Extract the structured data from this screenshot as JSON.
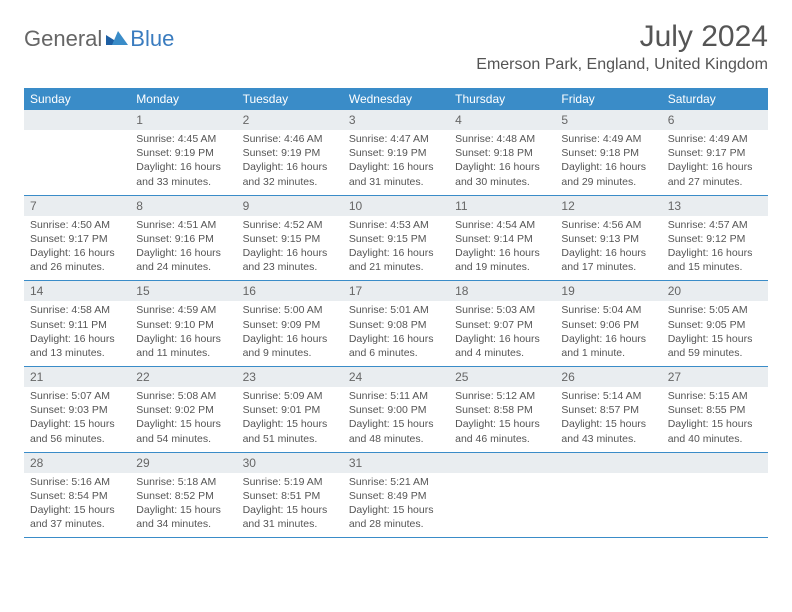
{
  "brand": {
    "part1": "General",
    "part2": "Blue"
  },
  "title": "July 2024",
  "location": "Emerson Park, England, United Kingdom",
  "colors": {
    "header_bg": "#3a8cc8",
    "header_text": "#ffffff",
    "daynum_bg": "#e9edf0",
    "text": "#555555",
    "rule": "#3a8cc8"
  },
  "days_of_week": [
    "Sunday",
    "Monday",
    "Tuesday",
    "Wednesday",
    "Thursday",
    "Friday",
    "Saturday"
  ],
  "weeks": [
    [
      {
        "blank": true
      },
      {
        "num": "1",
        "sunrise": "Sunrise: 4:45 AM",
        "sunset": "Sunset: 9:19 PM",
        "daylight1": "Daylight: 16 hours",
        "daylight2": "and 33 minutes."
      },
      {
        "num": "2",
        "sunrise": "Sunrise: 4:46 AM",
        "sunset": "Sunset: 9:19 PM",
        "daylight1": "Daylight: 16 hours",
        "daylight2": "and 32 minutes."
      },
      {
        "num": "3",
        "sunrise": "Sunrise: 4:47 AM",
        "sunset": "Sunset: 9:19 PM",
        "daylight1": "Daylight: 16 hours",
        "daylight2": "and 31 minutes."
      },
      {
        "num": "4",
        "sunrise": "Sunrise: 4:48 AM",
        "sunset": "Sunset: 9:18 PM",
        "daylight1": "Daylight: 16 hours",
        "daylight2": "and 30 minutes."
      },
      {
        "num": "5",
        "sunrise": "Sunrise: 4:49 AM",
        "sunset": "Sunset: 9:18 PM",
        "daylight1": "Daylight: 16 hours",
        "daylight2": "and 29 minutes."
      },
      {
        "num": "6",
        "sunrise": "Sunrise: 4:49 AM",
        "sunset": "Sunset: 9:17 PM",
        "daylight1": "Daylight: 16 hours",
        "daylight2": "and 27 minutes."
      }
    ],
    [
      {
        "num": "7",
        "sunrise": "Sunrise: 4:50 AM",
        "sunset": "Sunset: 9:17 PM",
        "daylight1": "Daylight: 16 hours",
        "daylight2": "and 26 minutes."
      },
      {
        "num": "8",
        "sunrise": "Sunrise: 4:51 AM",
        "sunset": "Sunset: 9:16 PM",
        "daylight1": "Daylight: 16 hours",
        "daylight2": "and 24 minutes."
      },
      {
        "num": "9",
        "sunrise": "Sunrise: 4:52 AM",
        "sunset": "Sunset: 9:15 PM",
        "daylight1": "Daylight: 16 hours",
        "daylight2": "and 23 minutes."
      },
      {
        "num": "10",
        "sunrise": "Sunrise: 4:53 AM",
        "sunset": "Sunset: 9:15 PM",
        "daylight1": "Daylight: 16 hours",
        "daylight2": "and 21 minutes."
      },
      {
        "num": "11",
        "sunrise": "Sunrise: 4:54 AM",
        "sunset": "Sunset: 9:14 PM",
        "daylight1": "Daylight: 16 hours",
        "daylight2": "and 19 minutes."
      },
      {
        "num": "12",
        "sunrise": "Sunrise: 4:56 AM",
        "sunset": "Sunset: 9:13 PM",
        "daylight1": "Daylight: 16 hours",
        "daylight2": "and 17 minutes."
      },
      {
        "num": "13",
        "sunrise": "Sunrise: 4:57 AM",
        "sunset": "Sunset: 9:12 PM",
        "daylight1": "Daylight: 16 hours",
        "daylight2": "and 15 minutes."
      }
    ],
    [
      {
        "num": "14",
        "sunrise": "Sunrise: 4:58 AM",
        "sunset": "Sunset: 9:11 PM",
        "daylight1": "Daylight: 16 hours",
        "daylight2": "and 13 minutes."
      },
      {
        "num": "15",
        "sunrise": "Sunrise: 4:59 AM",
        "sunset": "Sunset: 9:10 PM",
        "daylight1": "Daylight: 16 hours",
        "daylight2": "and 11 minutes."
      },
      {
        "num": "16",
        "sunrise": "Sunrise: 5:00 AM",
        "sunset": "Sunset: 9:09 PM",
        "daylight1": "Daylight: 16 hours",
        "daylight2": "and 9 minutes."
      },
      {
        "num": "17",
        "sunrise": "Sunrise: 5:01 AM",
        "sunset": "Sunset: 9:08 PM",
        "daylight1": "Daylight: 16 hours",
        "daylight2": "and 6 minutes."
      },
      {
        "num": "18",
        "sunrise": "Sunrise: 5:03 AM",
        "sunset": "Sunset: 9:07 PM",
        "daylight1": "Daylight: 16 hours",
        "daylight2": "and 4 minutes."
      },
      {
        "num": "19",
        "sunrise": "Sunrise: 5:04 AM",
        "sunset": "Sunset: 9:06 PM",
        "daylight1": "Daylight: 16 hours",
        "daylight2": "and 1 minute."
      },
      {
        "num": "20",
        "sunrise": "Sunrise: 5:05 AM",
        "sunset": "Sunset: 9:05 PM",
        "daylight1": "Daylight: 15 hours",
        "daylight2": "and 59 minutes."
      }
    ],
    [
      {
        "num": "21",
        "sunrise": "Sunrise: 5:07 AM",
        "sunset": "Sunset: 9:03 PM",
        "daylight1": "Daylight: 15 hours",
        "daylight2": "and 56 minutes."
      },
      {
        "num": "22",
        "sunrise": "Sunrise: 5:08 AM",
        "sunset": "Sunset: 9:02 PM",
        "daylight1": "Daylight: 15 hours",
        "daylight2": "and 54 minutes."
      },
      {
        "num": "23",
        "sunrise": "Sunrise: 5:09 AM",
        "sunset": "Sunset: 9:01 PM",
        "daylight1": "Daylight: 15 hours",
        "daylight2": "and 51 minutes."
      },
      {
        "num": "24",
        "sunrise": "Sunrise: 5:11 AM",
        "sunset": "Sunset: 9:00 PM",
        "daylight1": "Daylight: 15 hours",
        "daylight2": "and 48 minutes."
      },
      {
        "num": "25",
        "sunrise": "Sunrise: 5:12 AM",
        "sunset": "Sunset: 8:58 PM",
        "daylight1": "Daylight: 15 hours",
        "daylight2": "and 46 minutes."
      },
      {
        "num": "26",
        "sunrise": "Sunrise: 5:14 AM",
        "sunset": "Sunset: 8:57 PM",
        "daylight1": "Daylight: 15 hours",
        "daylight2": "and 43 minutes."
      },
      {
        "num": "27",
        "sunrise": "Sunrise: 5:15 AM",
        "sunset": "Sunset: 8:55 PM",
        "daylight1": "Daylight: 15 hours",
        "daylight2": "and 40 minutes."
      }
    ],
    [
      {
        "num": "28",
        "sunrise": "Sunrise: 5:16 AM",
        "sunset": "Sunset: 8:54 PM",
        "daylight1": "Daylight: 15 hours",
        "daylight2": "and 37 minutes."
      },
      {
        "num": "29",
        "sunrise": "Sunrise: 5:18 AM",
        "sunset": "Sunset: 8:52 PM",
        "daylight1": "Daylight: 15 hours",
        "daylight2": "and 34 minutes."
      },
      {
        "num": "30",
        "sunrise": "Sunrise: 5:19 AM",
        "sunset": "Sunset: 8:51 PM",
        "daylight1": "Daylight: 15 hours",
        "daylight2": "and 31 minutes."
      },
      {
        "num": "31",
        "sunrise": "Sunrise: 5:21 AM",
        "sunset": "Sunset: 8:49 PM",
        "daylight1": "Daylight: 15 hours",
        "daylight2": "and 28 minutes."
      },
      {
        "blank": true
      },
      {
        "blank": true
      },
      {
        "blank": true
      }
    ]
  ]
}
